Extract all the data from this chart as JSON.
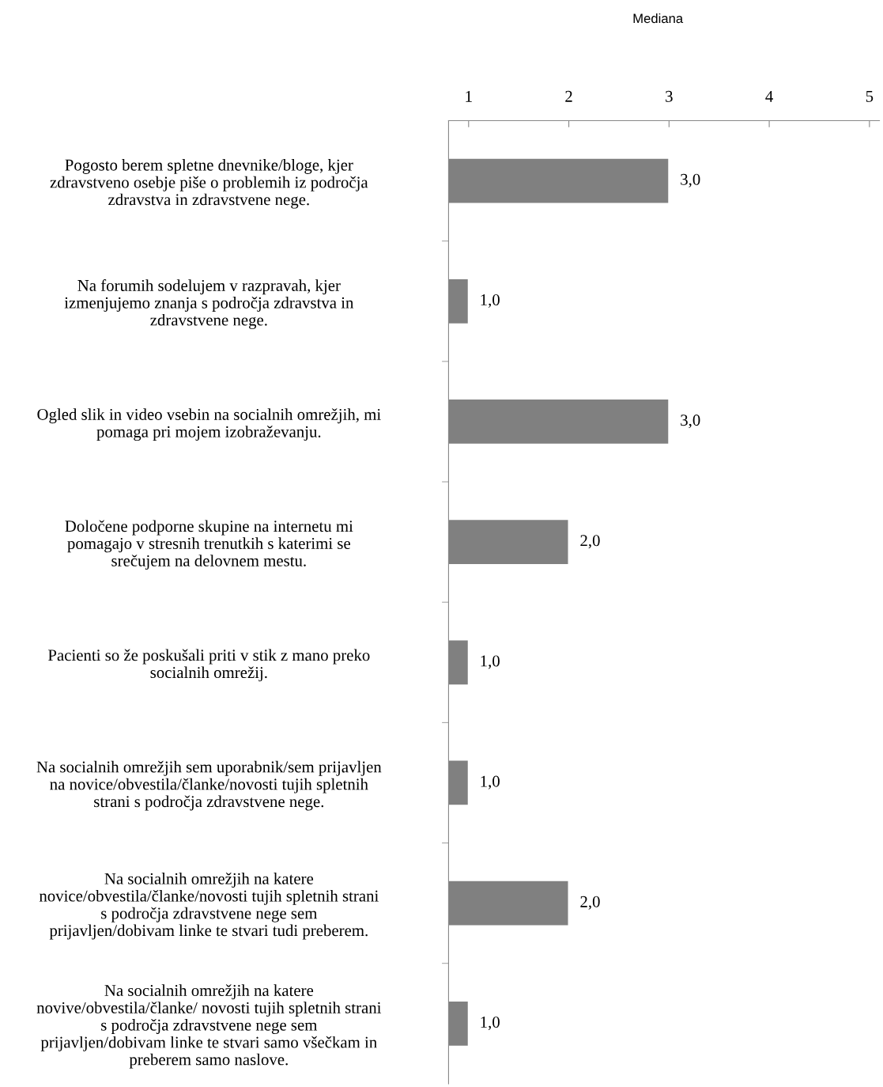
{
  "chart_data": {
    "type": "bar",
    "orientation": "horizontal",
    "annotations": [
      "Mediana"
    ],
    "categories": [
      "Pogosto berem spletne dnevnike/bloge, kjer\nzdravstveno osebje piše o problemih iz področja\nzdravstva in zdravstvene nege.",
      "Na forumih sodelujem v razpravah, kjer\nizmenjujemo znanja s področja zdravstva in\nzdravstvene nege.",
      "Ogled slik in video vsebin na socialnih omrežjih, mi\npomaga pri mojem izobraževanju.",
      "Določene podporne skupine na internetu mi\npomagajo v stresnih trenutkih s katerimi se\nsrečujem na delovnem mestu.",
      "Pacienti so že poskušali priti v stik z mano preko\nsocialnih omrežij.",
      "Na socialnih omrežjih sem uporabnik/sem prijavljen\nna novice/obvestila/članke/novosti tujih spletnih\nstrani s področja zdravstvene nege.",
      "Na socialnih omrežjih na katere\nnovice/obvestila/članke/novosti tujih spletnih strani\ns področja zdravstvene nege sem\nprijavljen/dobivam linke te stvari tudi preberem.",
      "Na socialnih omrežjih na katere\nnovive/obvestila/članke/ novosti tujih spletnih strani\ns področja zdravstvene nege sem\nprijavljen/dobivam linke te stvari samo všečkam in\npreberem samo naslove."
    ],
    "values": [
      3,
      1,
      3,
      2,
      1,
      1,
      2,
      1
    ],
    "value_labels": [
      "3,0",
      "1,0",
      "3,0",
      "2,0",
      "1,0",
      "1,0",
      "2,0",
      "1,0"
    ],
    "color": "#808080",
    "xlim": [
      0.8,
      5.1
    ],
    "xticks": [
      1,
      2,
      3,
      4,
      5
    ],
    "grid": false,
    "legend": false
  }
}
